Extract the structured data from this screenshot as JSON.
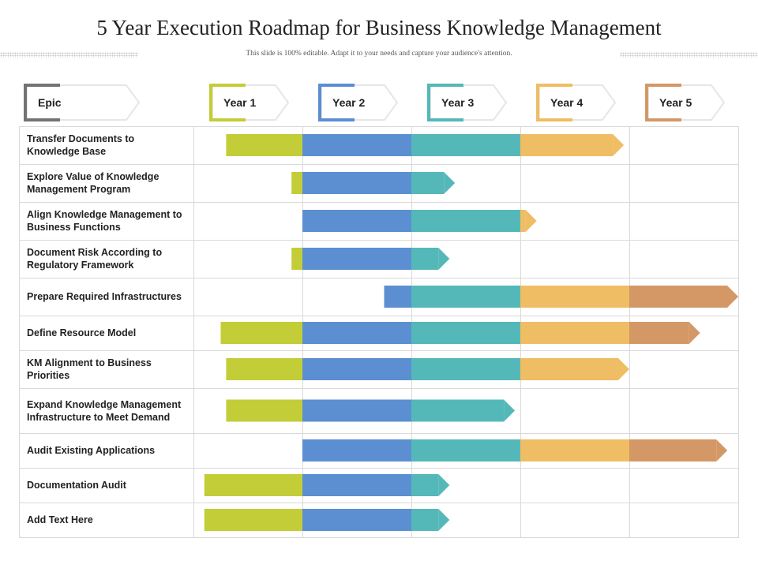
{
  "slide": {
    "title": "5 Year Execution Roadmap for Business Knowledge Management",
    "subtitle": "This slide is 100% editable. Adapt it to your needs and capture your audience's attention."
  },
  "header": {
    "epic_label": "Epic",
    "years": [
      "Year 1",
      "Year 2",
      "Year 3",
      "Year 4",
      "Year 5"
    ]
  },
  "colors": {
    "epic": "#737373",
    "years": [
      "#c3cd37",
      "#5b8fd1",
      "#55b8b8",
      "#efbd64",
      "#d49866"
    ],
    "grid": "#d9d9d9"
  },
  "rows": [
    {
      "label": "Transfer Documents to Knowledge Base",
      "start": 0.3,
      "end": 3.95,
      "arrow": true
    },
    {
      "label": "Explore Value of Knowledge Management Program",
      "start": 0.9,
      "end": 2.4,
      "arrow": true
    },
    {
      "label": "Align Knowledge Management to Business Functions",
      "start": 1.0,
      "end": 3.15,
      "arrow": true
    },
    {
      "label": "Document Risk According to Regulatory Framework",
      "start": 0.9,
      "end": 2.35,
      "arrow": true
    },
    {
      "label": "Prepare Required Infrastructures",
      "start": 1.75,
      "end": 5.0,
      "arrow": true
    },
    {
      "label": "Define Resource Model",
      "start": 0.25,
      "end": 4.65,
      "arrow": true
    },
    {
      "label": "KM Alignment to Business Priorities",
      "start": 0.3,
      "end": 4.0,
      "arrow": true
    },
    {
      "label": "Expand Knowledge Management Infrastructure to Meet Demand",
      "start": 0.3,
      "end": 2.95,
      "arrow": true
    },
    {
      "label": "Audit Existing Applications",
      "start": 1.0,
      "end": 4.9,
      "arrow": true
    },
    {
      "label": "Documentation Audit",
      "start": 0.1,
      "end": 2.35,
      "arrow": true
    },
    {
      "label": "Add Text Here",
      "start": 0.1,
      "end": 2.35,
      "arrow": true
    }
  ]
}
